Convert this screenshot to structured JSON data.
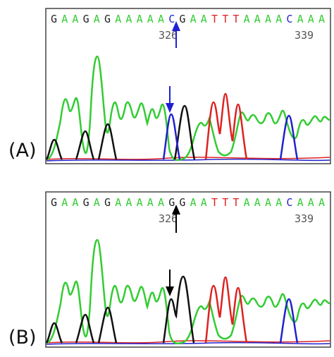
{
  "panels": [
    {
      "label": "(A)",
      "sequence": "GAAGAGAAAAACGAATTTAAAACAAA",
      "position_labels": [
        "326",
        "339"
      ],
      "arrow_color": "#1f1fd6",
      "arrow_base": "C",
      "arrow_peak_color": "#1f1fd6"
    },
    {
      "label": "(B)",
      "sequence": "GAAGAGAAAAAGGAATTTAAAACAAA",
      "position_labels": [
        "326",
        "339"
      ],
      "arrow_color": "#000000",
      "arrow_base": "G",
      "arrow_peak_color": "#000000"
    }
  ],
  "base_colors": {
    "A": "#33cc33",
    "C": "#2222cc",
    "G": "#222222",
    "T": "#dd2222"
  }
}
